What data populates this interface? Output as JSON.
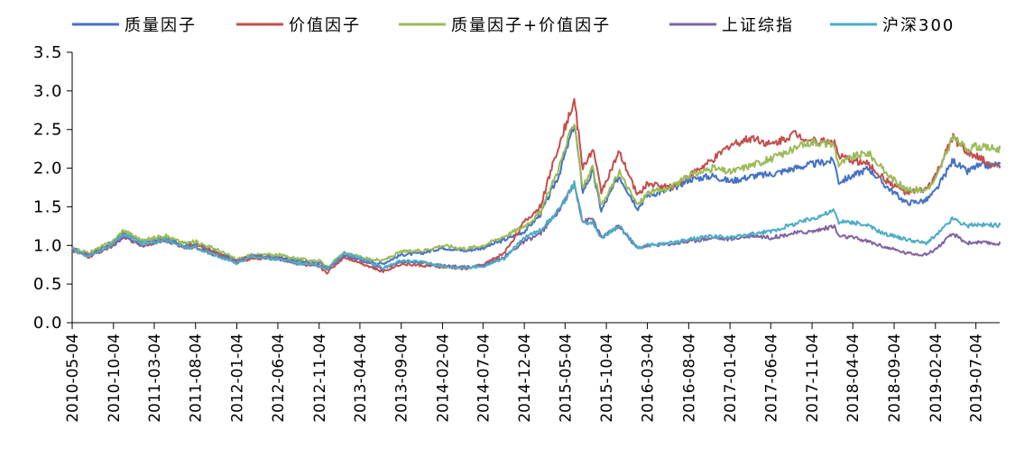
{
  "chart_data": {
    "type": "line",
    "ylim": [
      0,
      3.5
    ],
    "yticks": [
      "0.0",
      "0.5",
      "1.0",
      "1.5",
      "2.0",
      "2.5",
      "3.0",
      "3.5"
    ],
    "xticks": [
      "2010-05-04",
      "2010-10-04",
      "2011-03-04",
      "2011-08-04",
      "2012-01-04",
      "2012-06-04",
      "2012-11-04",
      "2013-04-04",
      "2013-09-04",
      "2014-02-04",
      "2014-07-04",
      "2014-12-04",
      "2015-05-04",
      "2015-10-04",
      "2016-03-04",
      "2016-08-04",
      "2017-01-04",
      "2017-06-04",
      "2017-11-04",
      "2018-04-04",
      "2018-09-04",
      "2019-02-04",
      "2019-07-04"
    ],
    "x_end": "2019-09-30",
    "legend_position": "top",
    "grid": false,
    "series": [
      {
        "name": "质量因子",
        "color": "#4472C4",
        "points": [
          [
            "2010-05-04",
            0.95
          ],
          [
            "2010-07-04",
            0.88
          ],
          [
            "2010-10-04",
            1.05
          ],
          [
            "2010-11-10",
            1.18
          ],
          [
            "2011-01-20",
            1.04
          ],
          [
            "2011-04-10",
            1.1
          ],
          [
            "2011-06-20",
            1.0
          ],
          [
            "2011-08-04",
            1.02
          ],
          [
            "2011-10-20",
            0.92
          ],
          [
            "2012-01-04",
            0.8
          ],
          [
            "2012-03-01",
            0.86
          ],
          [
            "2012-06-04",
            0.85
          ],
          [
            "2012-09-01",
            0.8
          ],
          [
            "2012-11-04",
            0.78
          ],
          [
            "2012-12-04",
            0.7
          ],
          [
            "2013-02-04",
            0.87
          ],
          [
            "2013-04-04",
            0.82
          ],
          [
            "2013-06-25",
            0.76
          ],
          [
            "2013-09-04",
            0.88
          ],
          [
            "2013-11-20",
            0.9
          ],
          [
            "2014-02-04",
            0.97
          ],
          [
            "2014-05-01",
            0.93
          ],
          [
            "2014-07-04",
            0.97
          ],
          [
            "2014-09-20",
            1.07
          ],
          [
            "2014-12-04",
            1.18
          ],
          [
            "2015-02-01",
            1.4
          ],
          [
            "2015-04-10",
            1.9
          ],
          [
            "2015-06-08",
            2.58
          ],
          [
            "2015-07-08",
            1.7
          ],
          [
            "2015-08-15",
            1.95
          ],
          [
            "2015-09-15",
            1.45
          ],
          [
            "2015-11-20",
            1.9
          ],
          [
            "2016-01-28",
            1.48
          ],
          [
            "2016-03-04",
            1.65
          ],
          [
            "2016-06-01",
            1.72
          ],
          [
            "2016-08-04",
            1.85
          ],
          [
            "2016-11-01",
            1.9
          ],
          [
            "2017-01-04",
            1.83
          ],
          [
            "2017-04-01",
            1.9
          ],
          [
            "2017-06-04",
            1.92
          ],
          [
            "2017-09-01",
            2.0
          ],
          [
            "2017-11-04",
            2.05
          ],
          [
            "2018-01-25",
            2.1
          ],
          [
            "2018-02-10",
            1.82
          ],
          [
            "2018-04-04",
            1.9
          ],
          [
            "2018-06-01",
            2.0
          ],
          [
            "2018-08-01",
            1.78
          ],
          [
            "2018-10-20",
            1.55
          ],
          [
            "2018-12-30",
            1.58
          ],
          [
            "2019-02-04",
            1.7
          ],
          [
            "2019-04-10",
            2.1
          ],
          [
            "2019-06-01",
            1.95
          ],
          [
            "2019-07-04",
            2.02
          ],
          [
            "2019-09-30",
            2.05
          ]
        ]
      },
      {
        "name": "价值因子",
        "color": "#C0504D",
        "points": [
          [
            "2010-05-04",
            0.93
          ],
          [
            "2010-07-04",
            0.85
          ],
          [
            "2010-10-04",
            1.0
          ],
          [
            "2010-11-10",
            1.12
          ],
          [
            "2011-01-20",
            1.0
          ],
          [
            "2011-04-10",
            1.07
          ],
          [
            "2011-06-20",
            0.98
          ],
          [
            "2011-08-04",
            1.0
          ],
          [
            "2011-10-20",
            0.9
          ],
          [
            "2012-01-04",
            0.78
          ],
          [
            "2012-03-01",
            0.83
          ],
          [
            "2012-06-04",
            0.83
          ],
          [
            "2012-09-01",
            0.75
          ],
          [
            "2012-11-04",
            0.72
          ],
          [
            "2012-12-04",
            0.65
          ],
          [
            "2013-02-04",
            0.85
          ],
          [
            "2013-04-04",
            0.78
          ],
          [
            "2013-06-25",
            0.66
          ],
          [
            "2013-09-04",
            0.76
          ],
          [
            "2013-11-20",
            0.74
          ],
          [
            "2014-02-04",
            0.72
          ],
          [
            "2014-05-01",
            0.7
          ],
          [
            "2014-07-04",
            0.75
          ],
          [
            "2014-09-20",
            0.9
          ],
          [
            "2014-12-04",
            1.3
          ],
          [
            "2015-02-01",
            1.5
          ],
          [
            "2015-04-10",
            2.3
          ],
          [
            "2015-06-08",
            2.88
          ],
          [
            "2015-07-08",
            2.0
          ],
          [
            "2015-08-15",
            2.25
          ],
          [
            "2015-09-15",
            1.7
          ],
          [
            "2015-11-20",
            2.2
          ],
          [
            "2016-01-28",
            1.65
          ],
          [
            "2016-03-04",
            1.8
          ],
          [
            "2016-06-01",
            1.75
          ],
          [
            "2016-08-04",
            1.9
          ],
          [
            "2016-11-01",
            2.1
          ],
          [
            "2017-01-04",
            2.3
          ],
          [
            "2017-04-01",
            2.4
          ],
          [
            "2017-06-04",
            2.3
          ],
          [
            "2017-09-01",
            2.45
          ],
          [
            "2017-11-04",
            2.35
          ],
          [
            "2018-01-25",
            2.35
          ],
          [
            "2018-02-10",
            2.15
          ],
          [
            "2018-04-04",
            2.1
          ],
          [
            "2018-06-01",
            2.05
          ],
          [
            "2018-08-01",
            1.85
          ],
          [
            "2018-10-20",
            1.68
          ],
          [
            "2018-12-30",
            1.72
          ],
          [
            "2019-02-04",
            1.9
          ],
          [
            "2019-04-10",
            2.4
          ],
          [
            "2019-06-01",
            2.2
          ],
          [
            "2019-07-04",
            2.15
          ],
          [
            "2019-09-30",
            2.0
          ]
        ]
      },
      {
        "name": "质量因子+价值因子",
        "color": "#9BBB59",
        "points": [
          [
            "2010-05-04",
            0.96
          ],
          [
            "2010-07-04",
            0.9
          ],
          [
            "2010-10-04",
            1.06
          ],
          [
            "2010-11-10",
            1.2
          ],
          [
            "2011-01-20",
            1.06
          ],
          [
            "2011-04-10",
            1.13
          ],
          [
            "2011-06-20",
            1.03
          ],
          [
            "2011-08-04",
            1.05
          ],
          [
            "2011-10-20",
            0.95
          ],
          [
            "2012-01-04",
            0.82
          ],
          [
            "2012-03-01",
            0.88
          ],
          [
            "2012-06-04",
            0.88
          ],
          [
            "2012-09-01",
            0.82
          ],
          [
            "2012-11-04",
            0.8
          ],
          [
            "2012-12-04",
            0.72
          ],
          [
            "2013-02-04",
            0.9
          ],
          [
            "2013-04-04",
            0.85
          ],
          [
            "2013-06-25",
            0.8
          ],
          [
            "2013-09-04",
            0.92
          ],
          [
            "2013-11-20",
            0.93
          ],
          [
            "2014-02-04",
            1.0
          ],
          [
            "2014-05-01",
            0.96
          ],
          [
            "2014-07-04",
            1.0
          ],
          [
            "2014-09-20",
            1.12
          ],
          [
            "2014-12-04",
            1.25
          ],
          [
            "2015-02-01",
            1.42
          ],
          [
            "2015-04-10",
            2.0
          ],
          [
            "2015-06-08",
            2.62
          ],
          [
            "2015-07-08",
            1.75
          ],
          [
            "2015-08-15",
            2.0
          ],
          [
            "2015-09-15",
            1.5
          ],
          [
            "2015-11-20",
            1.95
          ],
          [
            "2016-01-28",
            1.52
          ],
          [
            "2016-03-04",
            1.68
          ],
          [
            "2016-06-01",
            1.75
          ],
          [
            "2016-08-04",
            1.9
          ],
          [
            "2016-11-01",
            2.0
          ],
          [
            "2017-01-04",
            1.95
          ],
          [
            "2017-04-01",
            2.05
          ],
          [
            "2017-06-04",
            2.12
          ],
          [
            "2017-09-01",
            2.25
          ],
          [
            "2017-11-04",
            2.35
          ],
          [
            "2018-01-25",
            2.3
          ],
          [
            "2018-02-10",
            2.05
          ],
          [
            "2018-04-04",
            2.15
          ],
          [
            "2018-06-01",
            2.2
          ],
          [
            "2018-08-01",
            1.95
          ],
          [
            "2018-10-20",
            1.72
          ],
          [
            "2018-12-30",
            1.72
          ],
          [
            "2019-02-04",
            1.85
          ],
          [
            "2019-04-10",
            2.4
          ],
          [
            "2019-06-01",
            2.25
          ],
          [
            "2019-07-04",
            2.28
          ],
          [
            "2019-09-30",
            2.25
          ]
        ]
      },
      {
        "name": "上证综指",
        "color": "#8064A2",
        "points": [
          [
            "2010-05-04",
            0.96
          ],
          [
            "2010-07-04",
            0.87
          ],
          [
            "2010-10-04",
            1.0
          ],
          [
            "2010-11-10",
            1.1
          ],
          [
            "2011-01-20",
            1.0
          ],
          [
            "2011-04-10",
            1.07
          ],
          [
            "2011-06-20",
            0.98
          ],
          [
            "2011-08-04",
            0.97
          ],
          [
            "2011-10-20",
            0.87
          ],
          [
            "2012-01-04",
            0.79
          ],
          [
            "2012-03-01",
            0.87
          ],
          [
            "2012-06-04",
            0.82
          ],
          [
            "2012-09-01",
            0.77
          ],
          [
            "2012-11-04",
            0.75
          ],
          [
            "2012-12-04",
            0.7
          ],
          [
            "2013-02-04",
            0.87
          ],
          [
            "2013-04-04",
            0.81
          ],
          [
            "2013-06-25",
            0.7
          ],
          [
            "2013-09-04",
            0.79
          ],
          [
            "2013-11-20",
            0.78
          ],
          [
            "2014-02-04",
            0.74
          ],
          [
            "2014-05-01",
            0.72
          ],
          [
            "2014-07-04",
            0.74
          ],
          [
            "2014-09-20",
            0.85
          ],
          [
            "2014-12-04",
            1.05
          ],
          [
            "2015-02-01",
            1.15
          ],
          [
            "2015-04-10",
            1.45
          ],
          [
            "2015-06-08",
            1.8
          ],
          [
            "2015-07-08",
            1.3
          ],
          [
            "2015-08-15",
            1.35
          ],
          [
            "2015-09-15",
            1.1
          ],
          [
            "2015-11-20",
            1.25
          ],
          [
            "2016-01-28",
            0.96
          ],
          [
            "2016-03-04",
            1.0
          ],
          [
            "2016-06-01",
            1.02
          ],
          [
            "2016-08-04",
            1.05
          ],
          [
            "2016-11-01",
            1.1
          ],
          [
            "2017-01-04",
            1.08
          ],
          [
            "2017-04-01",
            1.13
          ],
          [
            "2017-06-04",
            1.1
          ],
          [
            "2017-09-01",
            1.16
          ],
          [
            "2017-11-04",
            1.18
          ],
          [
            "2018-01-25",
            1.25
          ],
          [
            "2018-02-10",
            1.12
          ],
          [
            "2018-04-04",
            1.1
          ],
          [
            "2018-06-01",
            1.05
          ],
          [
            "2018-08-01",
            0.98
          ],
          [
            "2018-10-20",
            0.9
          ],
          [
            "2018-12-30",
            0.88
          ],
          [
            "2019-02-04",
            0.95
          ],
          [
            "2019-04-10",
            1.15
          ],
          [
            "2019-06-01",
            1.03
          ],
          [
            "2019-07-04",
            1.04
          ],
          [
            "2019-09-30",
            1.02
          ]
        ]
      },
      {
        "name": "沪深300",
        "color": "#4BACC6",
        "points": [
          [
            "2010-05-04",
            0.95
          ],
          [
            "2010-07-04",
            0.86
          ],
          [
            "2010-10-04",
            1.02
          ],
          [
            "2010-11-10",
            1.15
          ],
          [
            "2011-01-20",
            1.02
          ],
          [
            "2011-04-10",
            1.08
          ],
          [
            "2011-06-20",
            0.98
          ],
          [
            "2011-08-04",
            0.97
          ],
          [
            "2011-10-20",
            0.87
          ],
          [
            "2012-01-04",
            0.77
          ],
          [
            "2012-03-01",
            0.86
          ],
          [
            "2012-06-04",
            0.82
          ],
          [
            "2012-09-01",
            0.76
          ],
          [
            "2012-11-04",
            0.74
          ],
          [
            "2012-12-04",
            0.7
          ],
          [
            "2013-02-04",
            0.9
          ],
          [
            "2013-04-04",
            0.84
          ],
          [
            "2013-06-25",
            0.71
          ],
          [
            "2013-09-04",
            0.8
          ],
          [
            "2013-11-20",
            0.79
          ],
          [
            "2014-02-04",
            0.73
          ],
          [
            "2014-05-01",
            0.71
          ],
          [
            "2014-07-04",
            0.73
          ],
          [
            "2014-09-20",
            0.83
          ],
          [
            "2014-12-04",
            1.1
          ],
          [
            "2015-02-01",
            1.2
          ],
          [
            "2015-04-10",
            1.45
          ],
          [
            "2015-06-08",
            1.8
          ],
          [
            "2015-07-08",
            1.3
          ],
          [
            "2015-08-15",
            1.3
          ],
          [
            "2015-09-15",
            1.1
          ],
          [
            "2015-11-20",
            1.25
          ],
          [
            "2016-01-28",
            0.97
          ],
          [
            "2016-03-04",
            1.0
          ],
          [
            "2016-06-01",
            1.03
          ],
          [
            "2016-08-04",
            1.08
          ],
          [
            "2016-11-01",
            1.12
          ],
          [
            "2017-01-04",
            1.1
          ],
          [
            "2017-04-01",
            1.15
          ],
          [
            "2017-06-04",
            1.18
          ],
          [
            "2017-09-01",
            1.28
          ],
          [
            "2017-11-04",
            1.35
          ],
          [
            "2018-01-25",
            1.45
          ],
          [
            "2018-02-10",
            1.3
          ],
          [
            "2018-04-04",
            1.3
          ],
          [
            "2018-06-01",
            1.25
          ],
          [
            "2018-08-01",
            1.15
          ],
          [
            "2018-10-20",
            1.08
          ],
          [
            "2018-12-30",
            1.03
          ],
          [
            "2019-02-04",
            1.12
          ],
          [
            "2019-04-10",
            1.35
          ],
          [
            "2019-06-01",
            1.25
          ],
          [
            "2019-07-04",
            1.27
          ],
          [
            "2019-09-30",
            1.26
          ]
        ]
      }
    ]
  }
}
